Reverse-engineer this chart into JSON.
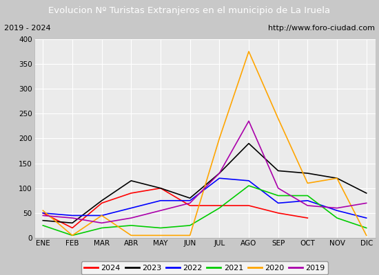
{
  "title": "Evolucion Nº Turistas Extranjeros en el municipio de La Iruela",
  "subtitle_left": "2019 - 2024",
  "subtitle_right": "http://www.foro-ciudad.com",
  "months": [
    "ENE",
    "FEB",
    "MAR",
    "ABR",
    "MAY",
    "JUN",
    "JUL",
    "AGO",
    "SEP",
    "OCT",
    "NOV",
    "DIC"
  ],
  "series": {
    "2024": [
      50,
      20,
      70,
      90,
      100,
      65,
      65,
      65,
      50,
      40,
      null,
      null
    ],
    "2023": [
      35,
      30,
      75,
      115,
      100,
      80,
      130,
      190,
      135,
      130,
      120,
      90
    ],
    "2022": [
      50,
      45,
      45,
      60,
      75,
      75,
      120,
      115,
      70,
      75,
      55,
      40
    ],
    "2021": [
      25,
      5,
      20,
      25,
      20,
      25,
      60,
      105,
      85,
      85,
      40,
      20
    ],
    "2020": [
      55,
      5,
      45,
      5,
      5,
      5,
      200,
      375,
      240,
      110,
      120,
      5
    ],
    "2019": [
      45,
      40,
      30,
      40,
      55,
      70,
      130,
      235,
      100,
      65,
      60,
      70
    ]
  },
  "colors": {
    "2024": "#ff0000",
    "2023": "#000000",
    "2022": "#0000ff",
    "2021": "#00cc00",
    "2020": "#ffa500",
    "2019": "#aa00aa"
  },
  "ylim": [
    0,
    400
  ],
  "yticks": [
    0,
    50,
    100,
    150,
    200,
    250,
    300,
    350,
    400
  ],
  "title_bg_color": "#4a7ab5",
  "title_text_color": "#ffffff",
  "plot_bg_color": "#ebebeb",
  "grid_color": "#ffffff",
  "subtitle_box_color": "#ffffff",
  "fig_bg_color": "#c8c8c8"
}
